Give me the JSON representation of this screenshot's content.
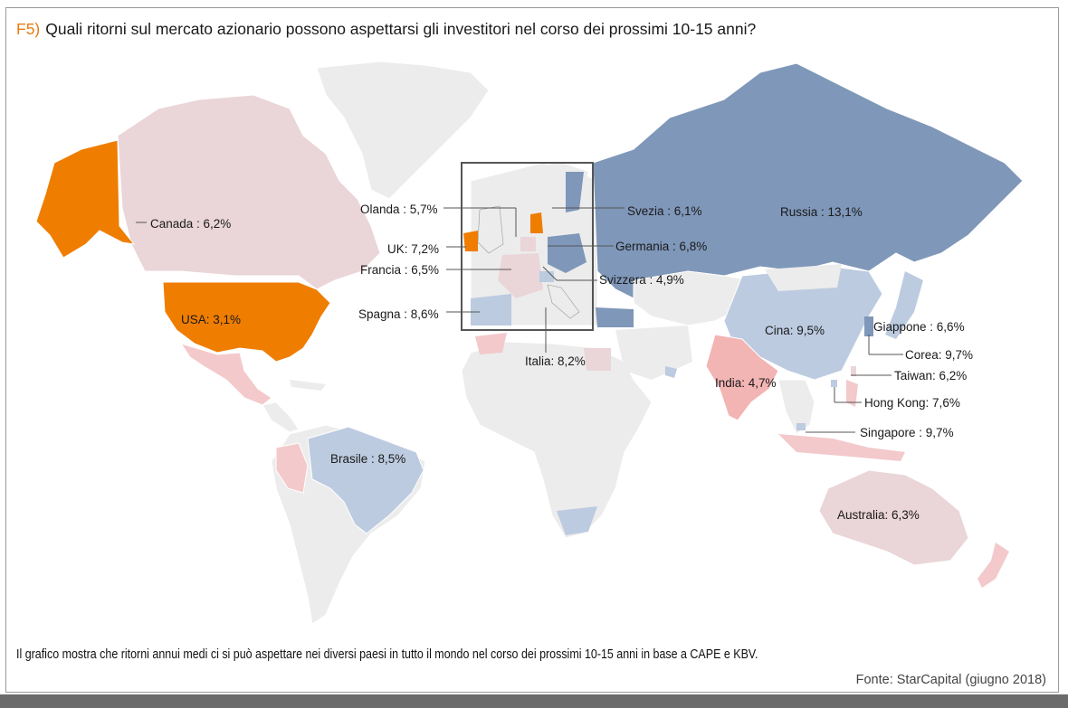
{
  "header": {
    "number": "F5)",
    "title": "Quali ritorni sul mercato azionario possono aspettarsi gli investitori nel corso dei prossimi 10-15 anni?"
  },
  "caption": "Il grafico mostra che ritorni annui medi ci si può aspettare nei diversi paesi in tutto il mondo nel corso dei prossimi 10-15 anni in base a CAPE e KBV.",
  "source": "Fonte: StarCapital (giugno 2018)",
  "colors": {
    "low": "#ef7d00",
    "lowMid": "#f3b4b4",
    "mid": "#ead5d8",
    "midHigh": "#bccbe0",
    "high": "#7f97b9",
    "none": "#ececec"
  },
  "labels": {
    "canada": "Canada : 6,2%",
    "usa": "USA: 3,1%",
    "brasile": "Brasile : 8,5%",
    "olanda": "Olanda : 5,7%",
    "uk": "UK: 7,2%",
    "francia": "Francia : 6,5%",
    "spagna": "Spagna : 8,6%",
    "italia": "Italia: 8,2%",
    "svezia": "Svezia : 6,1%",
    "germania": "Germania : 6,8%",
    "svizzera": "Svizzera : 4,9%",
    "russia": "Russia : 13,1%",
    "cina": "Cina: 9,5%",
    "india": "India: 4,7%",
    "giappone": "Giappone : 6,6%",
    "corea": "Corea: 9,7%",
    "taiwan": "Taiwan: 6,2%",
    "hongkong": "Hong Kong: 7,6%",
    "singapore": "Singapore : 9,7%",
    "australia": "Australia: 6,3%"
  }
}
